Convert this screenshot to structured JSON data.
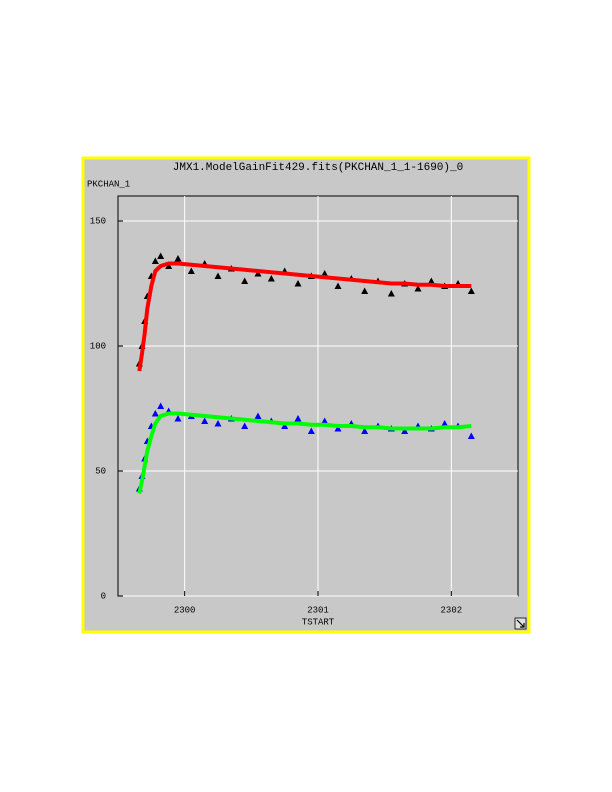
{
  "chart_data": {
    "type": "scatter",
    "title": "JMX1.ModelGainFit429.fits(PKCHAN_1_1-1690)_0",
    "y_label": "PKCHAN_1",
    "x_label": "TSTART",
    "x": [
      2299.66,
      2299.68,
      2299.7,
      2299.72,
      2299.75,
      2299.78,
      2299.82,
      2299.88,
      2299.95,
      2300.05,
      2300.15,
      2300.25,
      2300.35,
      2300.45,
      2300.55,
      2300.65,
      2300.75,
      2300.85,
      2300.95,
      2301.05,
      2301.15,
      2301.25,
      2301.35,
      2301.45,
      2301.55,
      2301.65,
      2301.75,
      2301.85,
      2301.95,
      2302.05,
      2302.15
    ],
    "series": [
      {
        "color": "#000000",
        "marker": "triangle",
        "values": [
          93,
          100,
          110,
          120,
          128,
          134,
          136,
          132,
          135,
          130,
          133,
          128,
          131,
          126,
          129,
          127,
          130,
          125,
          128,
          129,
          124,
          127,
          122,
          126,
          121,
          125,
          123,
          126,
          124,
          125,
          122
        ]
      },
      {
        "color": "#ff0000",
        "marker": "plus",
        "values": [
          90,
          97,
          105,
          115,
          124,
          130,
          132,
          133,
          133,
          132.5,
          132,
          131.5,
          131,
          130.5,
          130,
          129.5,
          129,
          128.5,
          128,
          127.5,
          127,
          126.5,
          126,
          125.5,
          125,
          125,
          124.5,
          124.5,
          124,
          124,
          124
        ]
      },
      {
        "color": "#0000ff",
        "marker": "triangle",
        "values": [
          43,
          48,
          55,
          62,
          68,
          73,
          76,
          74,
          71,
          72,
          70,
          69,
          71,
          68,
          72,
          70,
          68,
          71,
          66,
          70,
          67,
          69,
          66,
          68,
          67,
          66,
          68,
          67,
          69,
          68,
          64
        ]
      },
      {
        "color": "#00ff00",
        "marker": "plus",
        "values": [
          41,
          46,
          52,
          58,
          64,
          69,
          72,
          73,
          73,
          72.5,
          72,
          71.5,
          71,
          70.5,
          70,
          69.5,
          69,
          69,
          68.5,
          68.5,
          68,
          68,
          67.5,
          67.5,
          67,
          67,
          67,
          67,
          67.5,
          67.5,
          68
        ]
      }
    ],
    "xlim": [
      2299.5,
      2302.5
    ],
    "xticks": [
      2300,
      2301,
      2302
    ],
    "ylim": [
      0,
      160
    ],
    "yticks": [
      0,
      50,
      100,
      150
    ],
    "grid": true
  }
}
